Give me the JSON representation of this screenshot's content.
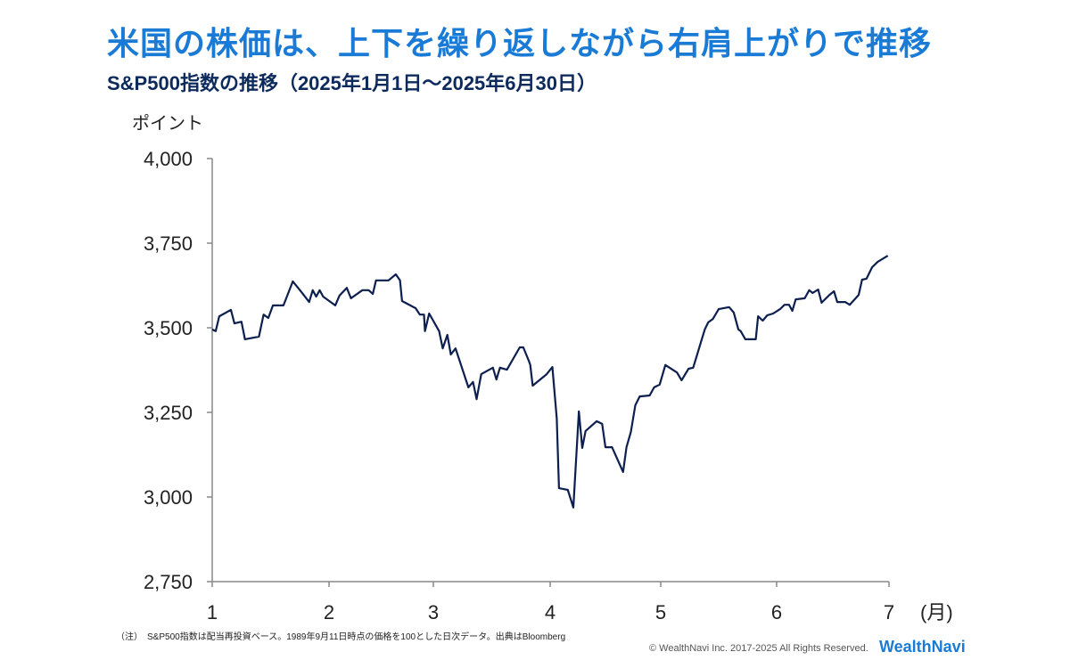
{
  "title": "米国の株価は、上下を繰り返しながら右肩上がりで推移",
  "footer": {
    "note": "（注）　S&P500指数は配当再投資ベース。1989年9月11日時点の価格を100とした日次データ。出典はBloomberg",
    "copyright": "© WealthNavi Inc. 2017-2025 All Rights Reserved.",
    "brand": "WealthNavi"
  },
  "colors": {
    "title": "#1a7bd6",
    "line": "#0d1f4f"
  },
  "chart_data": {
    "type": "line",
    "title": "S&P500指数の推移（2025年1月1日～2025年6月30日）",
    "ylabel": "ポイント",
    "xlabel": "(月)",
    "ylim": [
      2750,
      4000
    ],
    "xlim": [
      1,
      7
    ],
    "yticks": [
      "2,750",
      "3,000",
      "3,250",
      "3,500",
      "3,750",
      "4,000"
    ],
    "ytick_values": [
      2750,
      3000,
      3250,
      3500,
      3750,
      4000
    ],
    "xticks": [
      "1",
      "2",
      "3",
      "4",
      "5",
      "6",
      "7"
    ],
    "grid": false,
    "series": [
      {
        "points": [
          [
            1.0,
            3495
          ],
          [
            1.03,
            3490
          ],
          [
            1.06,
            3534
          ],
          [
            1.16,
            3553
          ],
          [
            1.19,
            3513
          ],
          [
            1.25,
            3518
          ],
          [
            1.28,
            3466
          ],
          [
            1.4,
            3474
          ],
          [
            1.44,
            3539
          ],
          [
            1.48,
            3529
          ],
          [
            1.52,
            3566
          ],
          [
            1.61,
            3566
          ],
          [
            1.69,
            3637
          ],
          [
            1.77,
            3603
          ],
          [
            1.83,
            3576
          ],
          [
            1.86,
            3611
          ],
          [
            1.89,
            3592
          ],
          [
            1.92,
            3611
          ],
          [
            1.95,
            3592
          ],
          [
            2.06,
            3566
          ],
          [
            2.1,
            3595
          ],
          [
            2.17,
            3618
          ],
          [
            2.21,
            3587
          ],
          [
            2.32,
            3611
          ],
          [
            2.38,
            3611
          ],
          [
            2.42,
            3600
          ],
          [
            2.45,
            3640
          ],
          [
            2.57,
            3640
          ],
          [
            2.64,
            3658
          ],
          [
            2.68,
            3640
          ],
          [
            2.7,
            3579
          ],
          [
            2.83,
            3558
          ],
          [
            2.87,
            3539
          ],
          [
            2.91,
            3539
          ],
          [
            2.92,
            3490
          ],
          [
            2.96,
            3542
          ],
          [
            3.05,
            3490
          ],
          [
            3.08,
            3439
          ],
          [
            3.12,
            3479
          ],
          [
            3.15,
            3421
          ],
          [
            3.19,
            3439
          ],
          [
            3.3,
            3324
          ],
          [
            3.34,
            3340
          ],
          [
            3.37,
            3289
          ],
          [
            3.41,
            3363
          ],
          [
            3.51,
            3382
          ],
          [
            3.54,
            3347
          ],
          [
            3.57,
            3382
          ],
          [
            3.63,
            3376
          ],
          [
            3.74,
            3442
          ],
          [
            3.77,
            3442
          ],
          [
            3.82,
            3400
          ],
          [
            3.83,
            3390
          ],
          [
            3.85,
            3329
          ],
          [
            3.97,
            3363
          ],
          [
            4.02,
            3384
          ],
          [
            4.06,
            3232
          ],
          [
            4.08,
            3026
          ],
          [
            4.16,
            3021
          ],
          [
            4.21,
            2969
          ],
          [
            4.26,
            3253
          ],
          [
            4.29,
            3145
          ],
          [
            4.32,
            3195
          ],
          [
            4.42,
            3224
          ],
          [
            4.47,
            3216
          ],
          [
            4.5,
            3147
          ],
          [
            4.56,
            3147
          ],
          [
            4.66,
            3074
          ],
          [
            4.69,
            3147
          ],
          [
            4.73,
            3192
          ],
          [
            4.77,
            3271
          ],
          [
            4.81,
            3297
          ],
          [
            4.9,
            3300
          ],
          [
            4.94,
            3324
          ],
          [
            4.99,
            3332
          ],
          [
            5.04,
            3390
          ],
          [
            5.14,
            3368
          ],
          [
            5.18,
            3345
          ],
          [
            5.24,
            3379
          ],
          [
            5.28,
            3382
          ],
          [
            5.38,
            3495
          ],
          [
            5.41,
            3516
          ],
          [
            5.45,
            3526
          ],
          [
            5.5,
            3555
          ],
          [
            5.59,
            3561
          ],
          [
            5.63,
            3545
          ],
          [
            5.67,
            3495
          ],
          [
            5.69,
            3490
          ],
          [
            5.73,
            3466
          ],
          [
            5.82,
            3466
          ],
          [
            5.84,
            3534
          ],
          [
            5.88,
            3521
          ],
          [
            5.92,
            3537
          ],
          [
            5.97,
            3542
          ],
          [
            6.03,
            3555
          ],
          [
            6.07,
            3568
          ],
          [
            6.11,
            3568
          ],
          [
            6.14,
            3550
          ],
          [
            6.17,
            3584
          ],
          [
            6.25,
            3587
          ],
          [
            6.29,
            3611
          ],
          [
            6.32,
            3603
          ],
          [
            6.37,
            3613
          ],
          [
            6.4,
            3574
          ],
          [
            6.47,
            3597
          ],
          [
            6.51,
            3608
          ],
          [
            6.54,
            3576
          ],
          [
            6.61,
            3576
          ],
          [
            6.65,
            3568
          ],
          [
            6.73,
            3597
          ],
          [
            6.76,
            3642
          ],
          [
            6.8,
            3645
          ],
          [
            6.85,
            3679
          ],
          [
            6.9,
            3695
          ],
          [
            6.99,
            3713
          ]
        ]
      }
    ]
  }
}
